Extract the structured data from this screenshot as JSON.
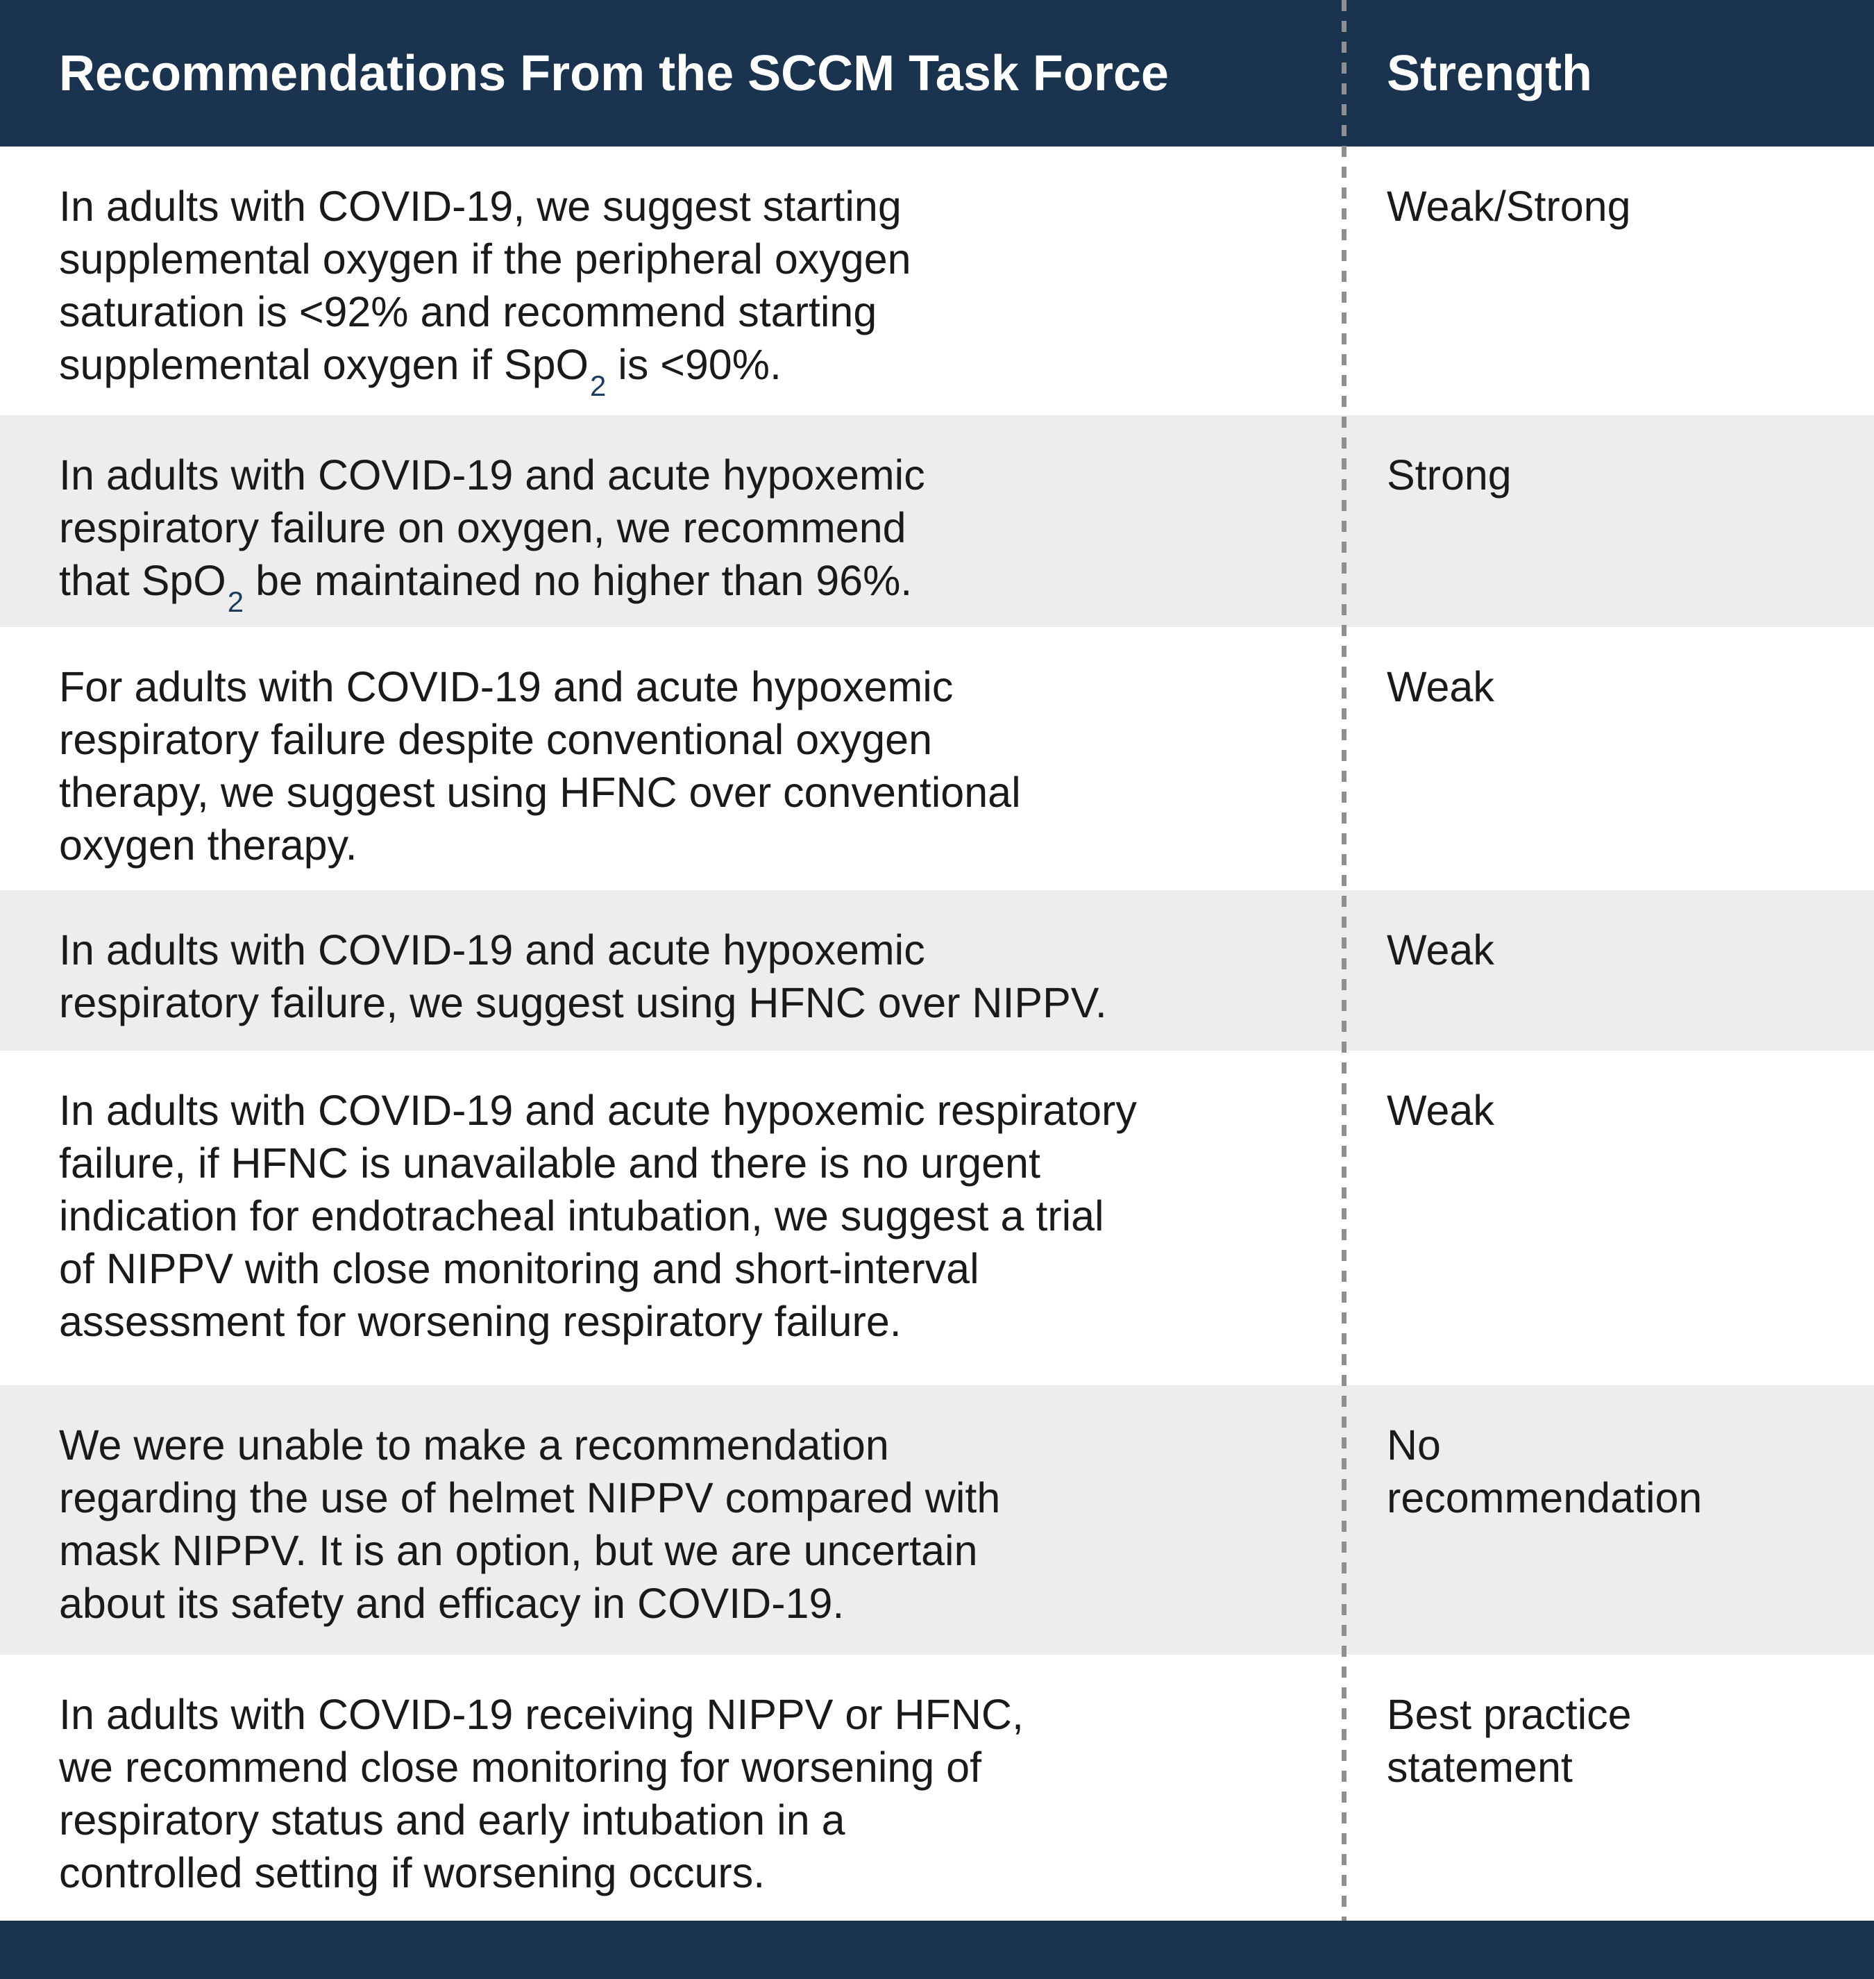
{
  "header": {
    "col1": "Recommendations From the SCCM Task Force",
    "col2": "Strength"
  },
  "colors": {
    "navy": "#1a334f",
    "row_alt": "#ededed",
    "text": "#1a1a1a",
    "dash": "#8f8f8f",
    "subscript_navy": "#1e3c5e"
  },
  "rows": [
    {
      "shaded": false,
      "strength": "Weak/Strong",
      "lines": [
        [
          {
            "t": "In adults with COVID-19, we suggest starting"
          }
        ],
        [
          {
            "t": "supplemental oxygen if the peripheral oxygen"
          }
        ],
        [
          {
            "t": "saturation is <92% and recommend starting"
          }
        ],
        [
          {
            "t": "supplemental oxygen if SpO"
          },
          {
            "t": "2",
            "sub": true
          },
          {
            "t": " is <90%."
          }
        ]
      ]
    },
    {
      "shaded": true,
      "strength": "Strong",
      "lines": [
        [
          {
            "t": "In adults with COVID-19 and acute hypoxemic"
          }
        ],
        [
          {
            "t": "respiratory failure on oxygen, we recommend"
          }
        ],
        [
          {
            "t": "that SpO"
          },
          {
            "t": "2",
            "sub": true
          },
          {
            "t": " be maintained no higher than 96%."
          }
        ]
      ]
    },
    {
      "shaded": false,
      "strength": "Weak",
      "lines": [
        [
          {
            "t": "For adults with COVID-19 and acute hypoxemic"
          }
        ],
        [
          {
            "t": "respiratory failure despite conventional oxygen"
          }
        ],
        [
          {
            "t": "therapy, we suggest using HFNC over conventional"
          }
        ],
        [
          {
            "t": "oxygen therapy."
          }
        ]
      ]
    },
    {
      "shaded": true,
      "strength": "Weak",
      "lines": [
        [
          {
            "t": "In adults with COVID-19 and acute hypoxemic"
          }
        ],
        [
          {
            "t": "respiratory failure, we suggest using HFNC over NIPPV."
          }
        ]
      ]
    },
    {
      "shaded": false,
      "strength": "Weak",
      "lines": [
        [
          {
            "t": "In adults with COVID-19 and acute hypoxemic respiratory"
          }
        ],
        [
          {
            "t": "failure, if HFNC is unavailable and there is no urgent"
          }
        ],
        [
          {
            "t": "indication for endotracheal intubation, we suggest a trial"
          }
        ],
        [
          {
            "t": "of NIPPV with close monitoring and short-interval"
          }
        ],
        [
          {
            "t": "assessment for worsening respiratory failure."
          }
        ]
      ]
    },
    {
      "shaded": true,
      "strength": "No recommendation",
      "lines": [
        [
          {
            "t": "We were unable to make a recommendation"
          }
        ],
        [
          {
            "t": "regarding the use of helmet NIPPV compared with"
          }
        ],
        [
          {
            "t": "mask NIPPV. It is an option, but we are uncertain"
          }
        ],
        [
          {
            "t": "about its safety and efficacy in COVID-19."
          }
        ]
      ]
    },
    {
      "shaded": false,
      "strength": "Best practice statement",
      "lines": [
        [
          {
            "t": "In adults with COVID-19 receiving NIPPV or HFNC,"
          }
        ],
        [
          {
            "t": "we recommend close monitoring for worsening of"
          }
        ],
        [
          {
            "t": "respiratory status and early intubation in a"
          }
        ],
        [
          {
            "t": "controlled setting if worsening occurs."
          }
        ]
      ]
    }
  ]
}
